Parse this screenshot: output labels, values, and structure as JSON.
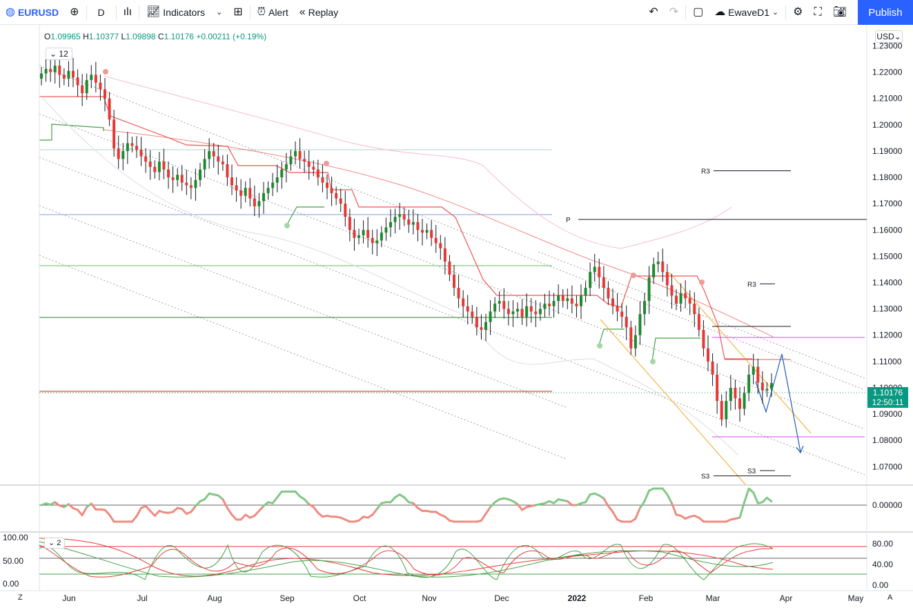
{
  "toolbar": {
    "symbol": "EURUSD",
    "interval": "D",
    "indicators_label": "Indicators",
    "alert_label": "Alert",
    "replay_label": "Replay",
    "layout_name": "EwaveD1",
    "publish_label": "Publish",
    "icons": [
      "symbol-flag-icon",
      "add-compare-icon",
      "candle-type-icon",
      "indicators-icon",
      "chevron-down-icon",
      "templates-icon",
      "alert-icon",
      "replay-icon",
      "undo-icon",
      "redo-icon",
      "rectangle-icon",
      "cloud-icon",
      "chevron-down-icon",
      "settings-icon",
      "fullscreen-icon",
      "camera-icon"
    ]
  },
  "legend": {
    "o_label": "O",
    "o": "1.09965",
    "h_label": "H",
    "h": "1.10377",
    "l_label": "L",
    "l": "1.09898",
    "c_label": "C",
    "c": "1.10176",
    "change": "+0.00211 (+0.19%)",
    "indicator_count": "12",
    "osc_count": "2"
  },
  "currency": "USD",
  "current_price": {
    "value": "1.10176",
    "countdown": "12:50:11",
    "color": "#089981"
  },
  "colors": {
    "up": "#1e8a2e",
    "down": "#e53935",
    "accent": "#2962ff",
    "magenta": "#e040fb",
    "orange": "#f5a623"
  },
  "chart_data": {
    "type": "candlestick",
    "title": "",
    "ylim": [
      1.063,
      1.238
    ],
    "y_ticks": [
      "1.23000",
      "1.22000",
      "1.21000",
      "1.20000",
      "1.19000",
      "1.18000",
      "1.17000",
      "1.16000",
      "1.15000",
      "1.14000",
      "1.13000",
      "1.12000",
      "1.11000",
      "1.10000",
      "1.09000",
      "1.08000",
      "1.07000"
    ],
    "x_ticks": [
      "Jun",
      "Jul",
      "Aug",
      "Sep",
      "Oct",
      "Nov",
      "Dec",
      "2022",
      "Feb",
      "Mar",
      "Apr",
      "May"
    ],
    "closes": [
      1.2195,
      1.2212,
      1.22,
      1.2225,
      1.219,
      1.2175,
      1.2205,
      1.218,
      1.215,
      1.212,
      1.217,
      1.219,
      1.216,
      1.2135,
      1.21,
      1.202,
      1.191,
      1.187,
      1.19,
      1.193,
      1.192,
      1.1905,
      1.188,
      1.186,
      1.184,
      1.182,
      1.186,
      1.183,
      1.18,
      1.179,
      1.181,
      1.178,
      1.177,
      1.176,
      1.179,
      1.183,
      1.187,
      1.19,
      1.188,
      1.186,
      1.185,
      1.18,
      1.177,
      1.175,
      1.173,
      1.176,
      1.172,
      1.169,
      1.171,
      1.174,
      1.176,
      1.178,
      1.18,
      1.183,
      1.185,
      1.188,
      1.19,
      1.187,
      1.186,
      1.184,
      1.183,
      1.18,
      1.178,
      1.176,
      1.174,
      1.172,
      1.17,
      1.165,
      1.16,
      1.157,
      1.158,
      1.16,
      1.157,
      1.155,
      1.156,
      1.159,
      1.161,
      1.163,
      1.165,
      1.166,
      1.164,
      1.162,
      1.163,
      1.16,
      1.159,
      1.16,
      1.157,
      1.155,
      1.153,
      1.148,
      1.143,
      1.138,
      1.134,
      1.131,
      1.129,
      1.127,
      1.123,
      1.122,
      1.125,
      1.129,
      1.132,
      1.133,
      1.13,
      1.128,
      1.129,
      1.13,
      1.127,
      1.131,
      1.129,
      1.128,
      1.13,
      1.132,
      1.131,
      1.133,
      1.135,
      1.133,
      1.134,
      1.132,
      1.131,
      1.135,
      1.138,
      1.144,
      1.146,
      1.142,
      1.138,
      1.134,
      1.131,
      1.129,
      1.127,
      1.123,
      1.115,
      1.12,
      1.128,
      1.133,
      1.142,
      1.147,
      1.148,
      1.144,
      1.139,
      1.135,
      1.132,
      1.136,
      1.134,
      1.132,
      1.128,
      1.122,
      1.115,
      1.11,
      1.105,
      1.095,
      1.088,
      1.095,
      1.1,
      1.096,
      1.092,
      1.098,
      1.105,
      1.108,
      1.102,
      1.099,
      1.0996,
      1.1018
    ],
    "pivots": [
      {
        "label": "R3",
        "value": 1.1825
      },
      {
        "label": "P",
        "value": 1.164
      },
      {
        "label": "R3",
        "value": 1.1395
      },
      {
        "label": "S3",
        "value": 1.0685
      },
      {
        "label": "S3",
        "value": 1.0665
      }
    ],
    "oscillator1": {
      "ytick": "0.00000"
    },
    "oscillator2": {
      "left_ticks": [
        "100.00",
        "50.00",
        "0.00"
      ],
      "right_ticks": [
        "80.00",
        "40.00",
        "0.00"
      ]
    }
  },
  "corners": {
    "left": "Z",
    "right": "A"
  }
}
